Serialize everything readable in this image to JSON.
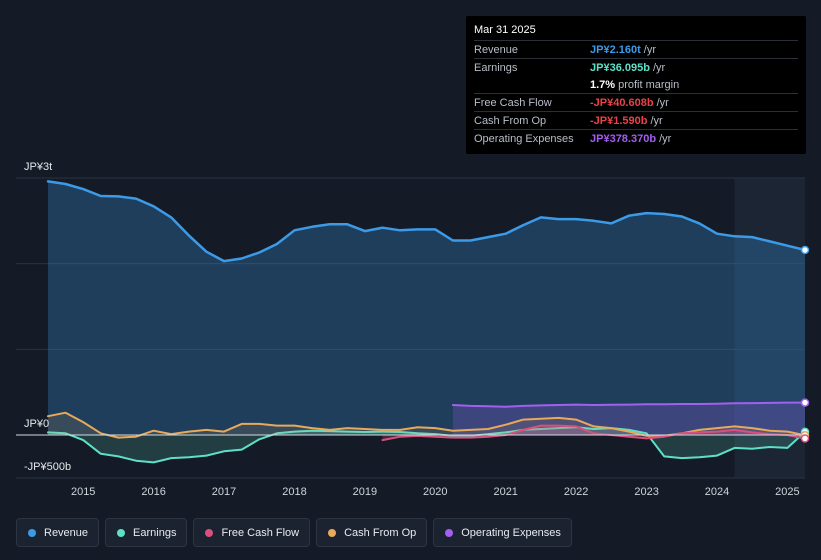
{
  "tooltip": {
    "date": "Mar 31 2025",
    "rows": [
      {
        "label": "Revenue",
        "value": "JP¥2.160t",
        "unit": "/yr",
        "color": "#3b9be8"
      },
      {
        "label": "Earnings",
        "value": "JP¥36.095b",
        "unit": "/yr",
        "color": "#5ee0c8"
      },
      {
        "label": "",
        "value": "1.7%",
        "unit": "profit margin",
        "color": "#ffffff"
      },
      {
        "label": "Free Cash Flow",
        "value": "-JP¥40.608b",
        "unit": "/yr",
        "color": "#e8434a"
      },
      {
        "label": "Cash From Op",
        "value": "-JP¥1.590b",
        "unit": "/yr",
        "color": "#e8434a"
      },
      {
        "label": "Operating Expenses",
        "value": "JP¥378.370b",
        "unit": "/yr",
        "color": "#a45ef0"
      }
    ]
  },
  "legend": [
    {
      "label": "Revenue",
      "color": "#3b9be8"
    },
    {
      "label": "Earnings",
      "color": "#5ee0c8"
    },
    {
      "label": "Free Cash Flow",
      "color": "#d9507e"
    },
    {
      "label": "Cash From Op",
      "color": "#e8a95a"
    },
    {
      "label": "Operating Expenses",
      "color": "#a45ef0"
    }
  ],
  "chart_data": {
    "type": "area",
    "title": "",
    "y_top_label": "JP¥3t",
    "y_zero_label": "JP¥0",
    "y_bottom_label": "-JP¥500b",
    "ylim": [
      -500,
      3000
    ],
    "y_unit": "JP¥ billions",
    "xlim": [
      2014.5,
      2025.25
    ],
    "x_ticks": [
      "2015",
      "2016",
      "2017",
      "2018",
      "2019",
      "2020",
      "2021",
      "2022",
      "2023",
      "2024",
      "2025"
    ],
    "forecast_start": 2024.25,
    "series": [
      {
        "name": "Revenue",
        "color": "#3b9be8",
        "points": [
          [
            2014.5,
            2960
          ],
          [
            2014.75,
            2930
          ],
          [
            2015.0,
            2870
          ],
          [
            2015.25,
            2790
          ],
          [
            2015.5,
            2785
          ],
          [
            2015.75,
            2760
          ],
          [
            2016.0,
            2670
          ],
          [
            2016.25,
            2540
          ],
          [
            2016.5,
            2330
          ],
          [
            2016.75,
            2140
          ],
          [
            2017.0,
            2030
          ],
          [
            2017.25,
            2060
          ],
          [
            2017.5,
            2130
          ],
          [
            2017.75,
            2230
          ],
          [
            2018.0,
            2390
          ],
          [
            2018.25,
            2430
          ],
          [
            2018.5,
            2460
          ],
          [
            2018.75,
            2460
          ],
          [
            2019.0,
            2380
          ],
          [
            2019.25,
            2420
          ],
          [
            2019.5,
            2390
          ],
          [
            2019.75,
            2400
          ],
          [
            2020.0,
            2400
          ],
          [
            2020.25,
            2270
          ],
          [
            2020.5,
            2270
          ],
          [
            2020.75,
            2310
          ],
          [
            2021.0,
            2350
          ],
          [
            2021.25,
            2450
          ],
          [
            2021.5,
            2540
          ],
          [
            2021.75,
            2520
          ],
          [
            2022.0,
            2520
          ],
          [
            2022.25,
            2500
          ],
          [
            2022.5,
            2470
          ],
          [
            2022.75,
            2560
          ],
          [
            2023.0,
            2590
          ],
          [
            2023.25,
            2580
          ],
          [
            2023.5,
            2550
          ],
          [
            2023.75,
            2470
          ],
          [
            2024.0,
            2350
          ],
          [
            2024.25,
            2320
          ],
          [
            2024.5,
            2310
          ],
          [
            2024.75,
            2260
          ],
          [
            2025.0,
            2210
          ],
          [
            2025.25,
            2160
          ]
        ]
      },
      {
        "name": "Earnings",
        "color": "#5ee0c8",
        "points": [
          [
            2014.5,
            30
          ],
          [
            2014.75,
            20
          ],
          [
            2015.0,
            -60
          ],
          [
            2015.25,
            -220
          ],
          [
            2015.5,
            -250
          ],
          [
            2015.75,
            -300
          ],
          [
            2016.0,
            -320
          ],
          [
            2016.25,
            -270
          ],
          [
            2016.5,
            -260
          ],
          [
            2016.75,
            -240
          ],
          [
            2017.0,
            -190
          ],
          [
            2017.25,
            -170
          ],
          [
            2017.5,
            -50
          ],
          [
            2017.75,
            20
          ],
          [
            2018.0,
            40
          ],
          [
            2018.25,
            50
          ],
          [
            2018.5,
            45
          ],
          [
            2018.75,
            40
          ],
          [
            2019.0,
            35
          ],
          [
            2019.25,
            40
          ],
          [
            2019.5,
            35
          ],
          [
            2019.75,
            20
          ],
          [
            2020.0,
            10
          ],
          [
            2020.25,
            -10
          ],
          [
            2020.5,
            -10
          ],
          [
            2020.75,
            10
          ],
          [
            2021.0,
            30
          ],
          [
            2021.25,
            60
          ],
          [
            2021.5,
            70
          ],
          [
            2021.75,
            80
          ],
          [
            2022.0,
            90
          ],
          [
            2022.25,
            70
          ],
          [
            2022.5,
            80
          ],
          [
            2022.75,
            60
          ],
          [
            2023.0,
            20
          ],
          [
            2023.25,
            -250
          ],
          [
            2023.5,
            -270
          ],
          [
            2023.75,
            -260
          ],
          [
            2024.0,
            -240
          ],
          [
            2024.25,
            -150
          ],
          [
            2024.5,
            -160
          ],
          [
            2024.75,
            -140
          ],
          [
            2025.0,
            -150
          ],
          [
            2025.25,
            36
          ]
        ]
      },
      {
        "name": "Free Cash Flow",
        "color": "#d9507e",
        "points": [
          [
            2019.25,
            -60
          ],
          [
            2019.5,
            -20
          ],
          [
            2019.75,
            -10
          ],
          [
            2020.0,
            -20
          ],
          [
            2020.25,
            -30
          ],
          [
            2020.5,
            -30
          ],
          [
            2020.75,
            -20
          ],
          [
            2021.0,
            0
          ],
          [
            2021.25,
            60
          ],
          [
            2021.5,
            110
          ],
          [
            2021.75,
            110
          ],
          [
            2022.0,
            100
          ],
          [
            2022.25,
            20
          ],
          [
            2022.5,
            0
          ],
          [
            2022.75,
            -20
          ],
          [
            2023.0,
            -40
          ],
          [
            2023.25,
            -20
          ],
          [
            2023.5,
            20
          ],
          [
            2023.75,
            30
          ],
          [
            2024.0,
            40
          ],
          [
            2024.25,
            60
          ],
          [
            2024.5,
            30
          ],
          [
            2024.75,
            10
          ],
          [
            2025.0,
            0
          ],
          [
            2025.25,
            -41
          ]
        ]
      },
      {
        "name": "Cash From Op",
        "color": "#e8a95a",
        "points": [
          [
            2014.5,
            220
          ],
          [
            2014.75,
            260
          ],
          [
            2015.0,
            150
          ],
          [
            2015.25,
            20
          ],
          [
            2015.5,
            -30
          ],
          [
            2015.75,
            -20
          ],
          [
            2016.0,
            50
          ],
          [
            2016.25,
            10
          ],
          [
            2016.5,
            40
          ],
          [
            2016.75,
            60
          ],
          [
            2017.0,
            40
          ],
          [
            2017.25,
            130
          ],
          [
            2017.5,
            130
          ],
          [
            2017.75,
            110
          ],
          [
            2018.0,
            110
          ],
          [
            2018.25,
            80
          ],
          [
            2018.5,
            60
          ],
          [
            2018.75,
            80
          ],
          [
            2019.0,
            70
          ],
          [
            2019.25,
            60
          ],
          [
            2019.5,
            60
          ],
          [
            2019.75,
            90
          ],
          [
            2020.0,
            80
          ],
          [
            2020.25,
            50
          ],
          [
            2020.5,
            60
          ],
          [
            2020.75,
            70
          ],
          [
            2021.0,
            120
          ],
          [
            2021.25,
            180
          ],
          [
            2021.5,
            190
          ],
          [
            2021.75,
            200
          ],
          [
            2022.0,
            180
          ],
          [
            2022.25,
            100
          ],
          [
            2022.5,
            80
          ],
          [
            2022.75,
            40
          ],
          [
            2023.0,
            -10
          ],
          [
            2023.25,
            -10
          ],
          [
            2023.5,
            20
          ],
          [
            2023.75,
            60
          ],
          [
            2024.0,
            80
          ],
          [
            2024.25,
            100
          ],
          [
            2024.5,
            80
          ],
          [
            2024.75,
            50
          ],
          [
            2025.0,
            40
          ],
          [
            2025.25,
            -2
          ]
        ]
      },
      {
        "name": "Operating Expenses",
        "color": "#a45ef0",
        "points": [
          [
            2020.25,
            350
          ],
          [
            2020.5,
            340
          ],
          [
            2020.75,
            335
          ],
          [
            2021.0,
            330
          ],
          [
            2021.25,
            340
          ],
          [
            2021.5,
            345
          ],
          [
            2021.75,
            350
          ],
          [
            2022.0,
            355
          ],
          [
            2022.25,
            350
          ],
          [
            2022.5,
            352
          ],
          [
            2022.75,
            355
          ],
          [
            2023.0,
            358
          ],
          [
            2023.25,
            360
          ],
          [
            2023.5,
            362
          ],
          [
            2023.75,
            362
          ],
          [
            2024.0,
            365
          ],
          [
            2024.25,
            370
          ],
          [
            2024.5,
            372
          ],
          [
            2024.75,
            375
          ],
          [
            2025.0,
            378
          ],
          [
            2025.25,
            378
          ]
        ]
      }
    ]
  }
}
